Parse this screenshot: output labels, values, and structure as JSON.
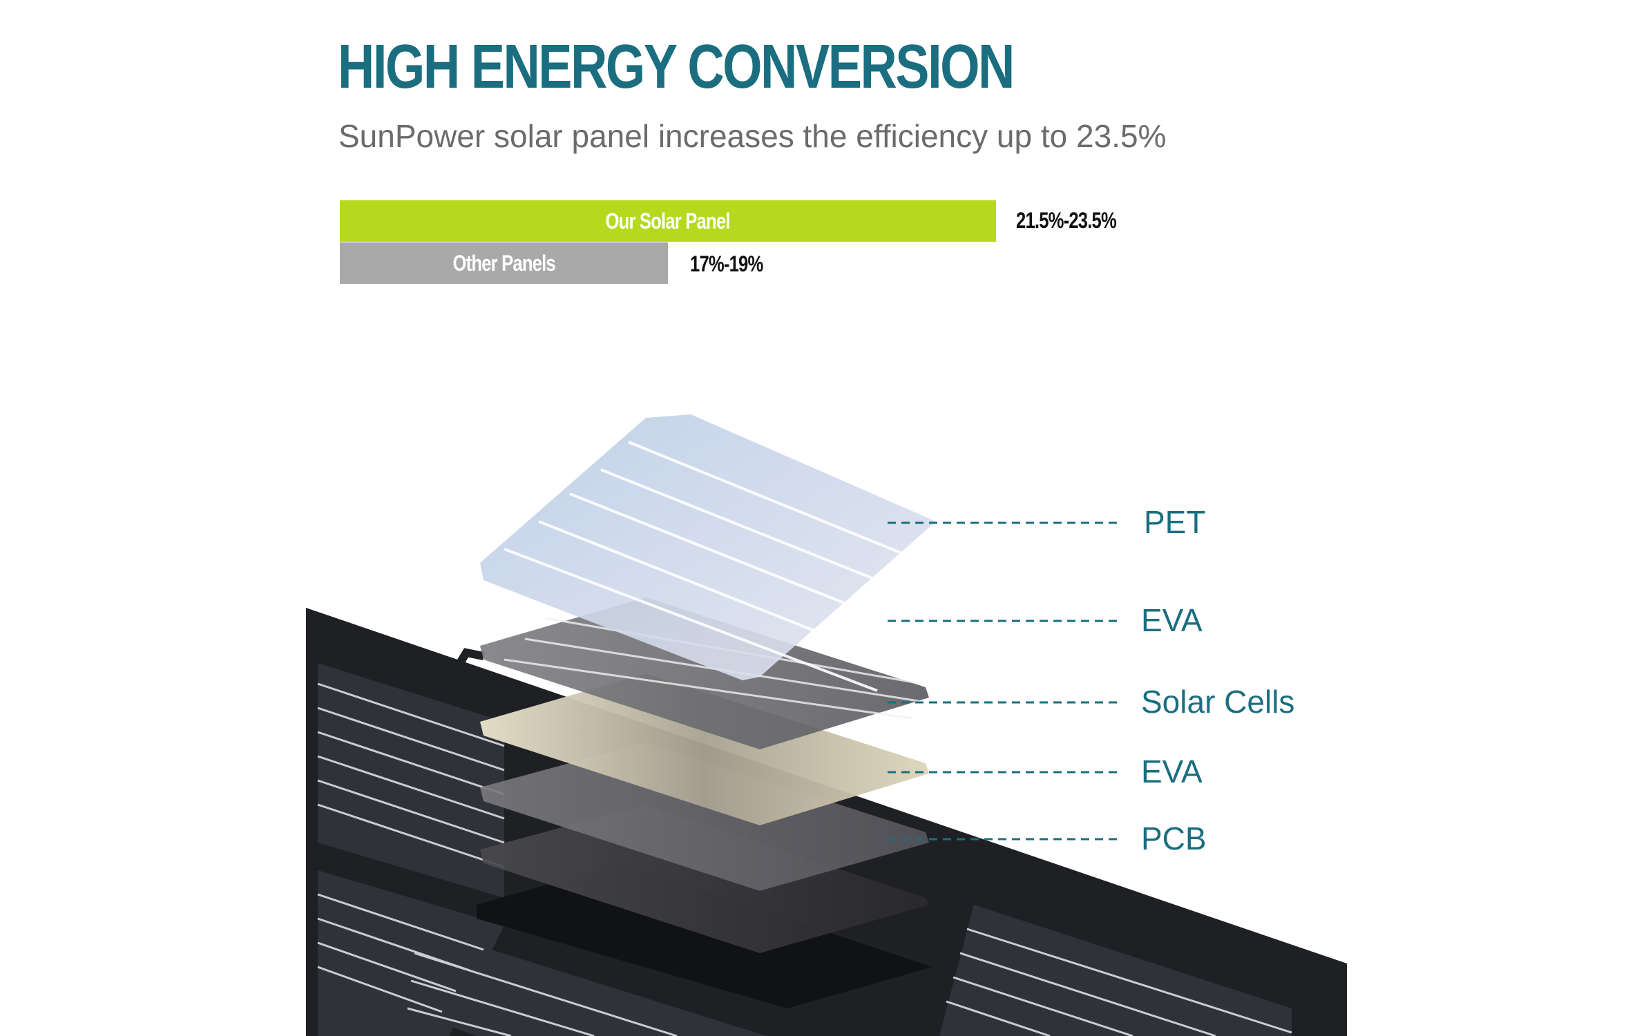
{
  "header": {
    "title": "HIGH ENERGY CONVERSION",
    "subtitle": "SunPower solar panel increases the efficiency up to 23.5%"
  },
  "comparison": {
    "ours": {
      "label": "Our Solar Panel",
      "value": "21.5%-23.5%",
      "color": "#b6d91e"
    },
    "other": {
      "label": "Other Panels",
      "value": "17%-19%",
      "color": "#a9a9a9"
    }
  },
  "layers": [
    {
      "label": "PET"
    },
    {
      "label": "EVA"
    },
    {
      "label": "Solar Cells"
    },
    {
      "label": "EVA"
    },
    {
      "label": "PCB"
    }
  ],
  "colors": {
    "accent": "#1a6e80",
    "panel_dark": "#2e3036",
    "panel_frame": "#1f2024"
  }
}
